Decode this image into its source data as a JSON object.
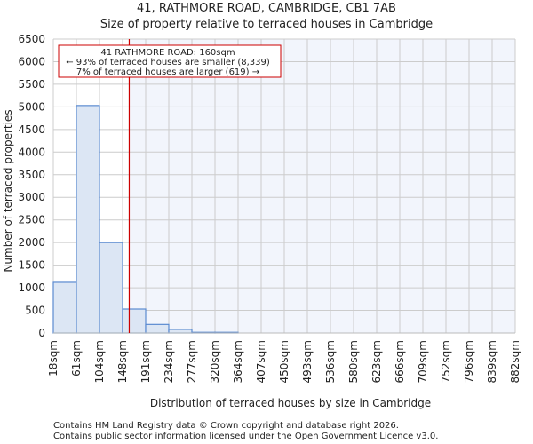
{
  "chart_data": {
    "type": "bar",
    "title": "41, RATHMORE ROAD, CAMBRIDGE, CB1 7AB",
    "subtitle": "Size of property relative to terraced houses in Cambridge",
    "xlabel": "Distribution of terraced houses by size in Cambridge",
    "ylabel": "Number of terraced properties",
    "x_tick_labels": [
      "18sqm",
      "61sqm",
      "104sqm",
      "148sqm",
      "191sqm",
      "234sqm",
      "277sqm",
      "320sqm",
      "364sqm",
      "407sqm",
      "450sqm",
      "493sqm",
      "536sqm",
      "580sqm",
      "623sqm",
      "666sqm",
      "709sqm",
      "752sqm",
      "796sqm",
      "839sqm",
      "882sqm"
    ],
    "bin_edges": [
      18,
      61.2,
      104.4,
      147.6,
      190.8,
      234,
      277.2,
      320.4,
      363.6,
      406.8,
      450,
      493.2,
      536.4,
      579.6,
      622.8,
      666,
      709.2,
      752.4,
      795.6,
      838.8,
      882
    ],
    "values": [
      1120,
      5030,
      2000,
      530,
      190,
      80,
      15,
      15,
      0,
      0,
      0,
      0,
      0,
      0,
      0,
      0,
      0,
      0,
      0,
      0
    ],
    "y_ticks": [
      0,
      500,
      1000,
      1500,
      2000,
      2500,
      3000,
      3500,
      4000,
      4500,
      5000,
      5500,
      6000,
      6500
    ],
    "ylim": [
      0,
      6500
    ],
    "grid": true,
    "marker_value": 160,
    "annotation": {
      "line1": "41 RATHMORE ROAD: 160sqm",
      "line2": "← 93% of terraced houses are smaller (8,339)",
      "line3": "7% of terraced houses are larger (619) →"
    },
    "colors": {
      "bar_fill": "#dce6f4",
      "bar_edge": "#5a8ad0",
      "marker": "#cc0000",
      "highlight_bg": "#f2f5fc",
      "grid": "#cccccc"
    }
  },
  "footer": {
    "line1": "Contains HM Land Registry data © Crown copyright and database right 2026.",
    "line2": "Contains public sector information licensed under the Open Government Licence v3.0."
  }
}
